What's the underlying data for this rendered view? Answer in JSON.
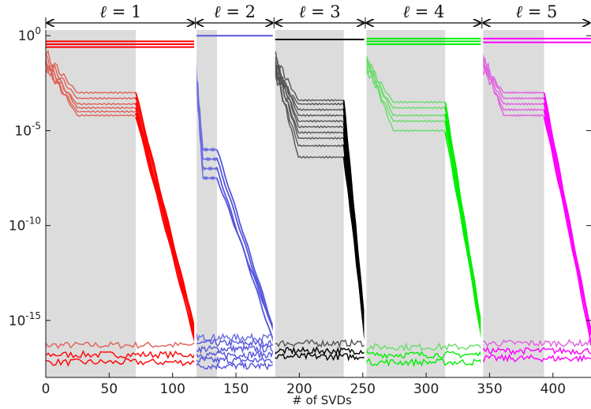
{
  "chart_data": {
    "type": "line",
    "xlabel": "# of SVDs",
    "ylabel": "",
    "xlim": [
      0,
      430
    ],
    "ylim_log10": [
      -18,
      0.3
    ],
    "y_scale": "log",
    "grid": false,
    "x_ticks": [
      0,
      50,
      100,
      150,
      200,
      250,
      300,
      350,
      400
    ],
    "x_tick_labels": [
      "0",
      "50",
      "100",
      "150",
      "200",
      "250",
      "300",
      "350",
      "400"
    ],
    "y_ticks_log10": [
      0,
      -5,
      -10,
      -15
    ],
    "y_tick_labels": [
      {
        "base": "10",
        "exp": "0"
      },
      {
        "base": "10",
        "exp": "-5"
      },
      {
        "base": "10",
        "exp": "-10"
      },
      {
        "base": "10",
        "exp": "-15"
      }
    ],
    "segments": [
      {
        "label_var": "ℓ",
        "label_rest": " = 1",
        "start": 0,
        "plateau_end": 71,
        "end": 118,
        "plateau_color": "#e06055",
        "decay_color": "#ff0000",
        "plateau_levels_log10": [
          -3.0,
          -3.3,
          -3.6,
          -3.8,
          -4.0,
          -4.2
        ],
        "top_levels_log10": [
          -0.3,
          -0.45,
          -0.6
        ],
        "floor_levels_log10": [
          -16.3,
          -16.8,
          -17.2
        ]
      },
      {
        "label_var": "ℓ",
        "label_rest": " = 2",
        "start": 118,
        "plateau_end": 135,
        "end": 180,
        "plateau_color": "#6a6ee0",
        "decay_color": "#5555dd",
        "plateau_levels_log10": [
          -6.0,
          -6.5,
          -7.0,
          -7.5
        ],
        "top_levels_log10": [
          0.0
        ],
        "floor_levels_log10": [
          -15.9,
          -16.2,
          -16.5,
          -16.8,
          -17.1,
          -17.4
        ]
      },
      {
        "label_var": "ℓ",
        "label_rest": " = 3",
        "start": 180,
        "plateau_end": 235,
        "end": 252,
        "plateau_color": "#555555",
        "decay_color": "#000000",
        "plateau_levels_log10": [
          -3.4,
          -3.6,
          -3.9,
          -4.2,
          -4.5,
          -4.8,
          -5.1,
          -5.4,
          -5.8,
          -6.4
        ],
        "top_levels_log10": [
          -0.2
        ],
        "floor_levels_log10": [
          -16.2,
          -16.6,
          -16.9
        ]
      },
      {
        "label_var": "ℓ",
        "label_rest": " = 4",
        "start": 252,
        "plateau_end": 315,
        "end": 344,
        "plateau_color": "#66dd66",
        "decay_color": "#00ee00",
        "plateau_levels_log10": [
          -3.5,
          -3.8,
          -4.2,
          -4.5,
          -5.0
        ],
        "top_levels_log10": [
          -0.15,
          -0.3,
          -0.45
        ],
        "floor_levels_log10": [
          -16.4,
          -16.8,
          -17.2
        ]
      },
      {
        "label_var": "ℓ",
        "label_rest": " = 5",
        "start": 344,
        "plateau_end": 393,
        "end": 430,
        "plateau_color": "#e060e0",
        "decay_color": "#ff00ff",
        "plateau_levels_log10": [
          -3.0,
          -3.3,
          -3.6,
          -3.9,
          -4.2
        ],
        "top_levels_log10": [
          -0.15,
          -0.35
        ],
        "floor_levels_log10": [
          -16.2,
          -16.6,
          -17.0
        ]
      }
    ]
  }
}
